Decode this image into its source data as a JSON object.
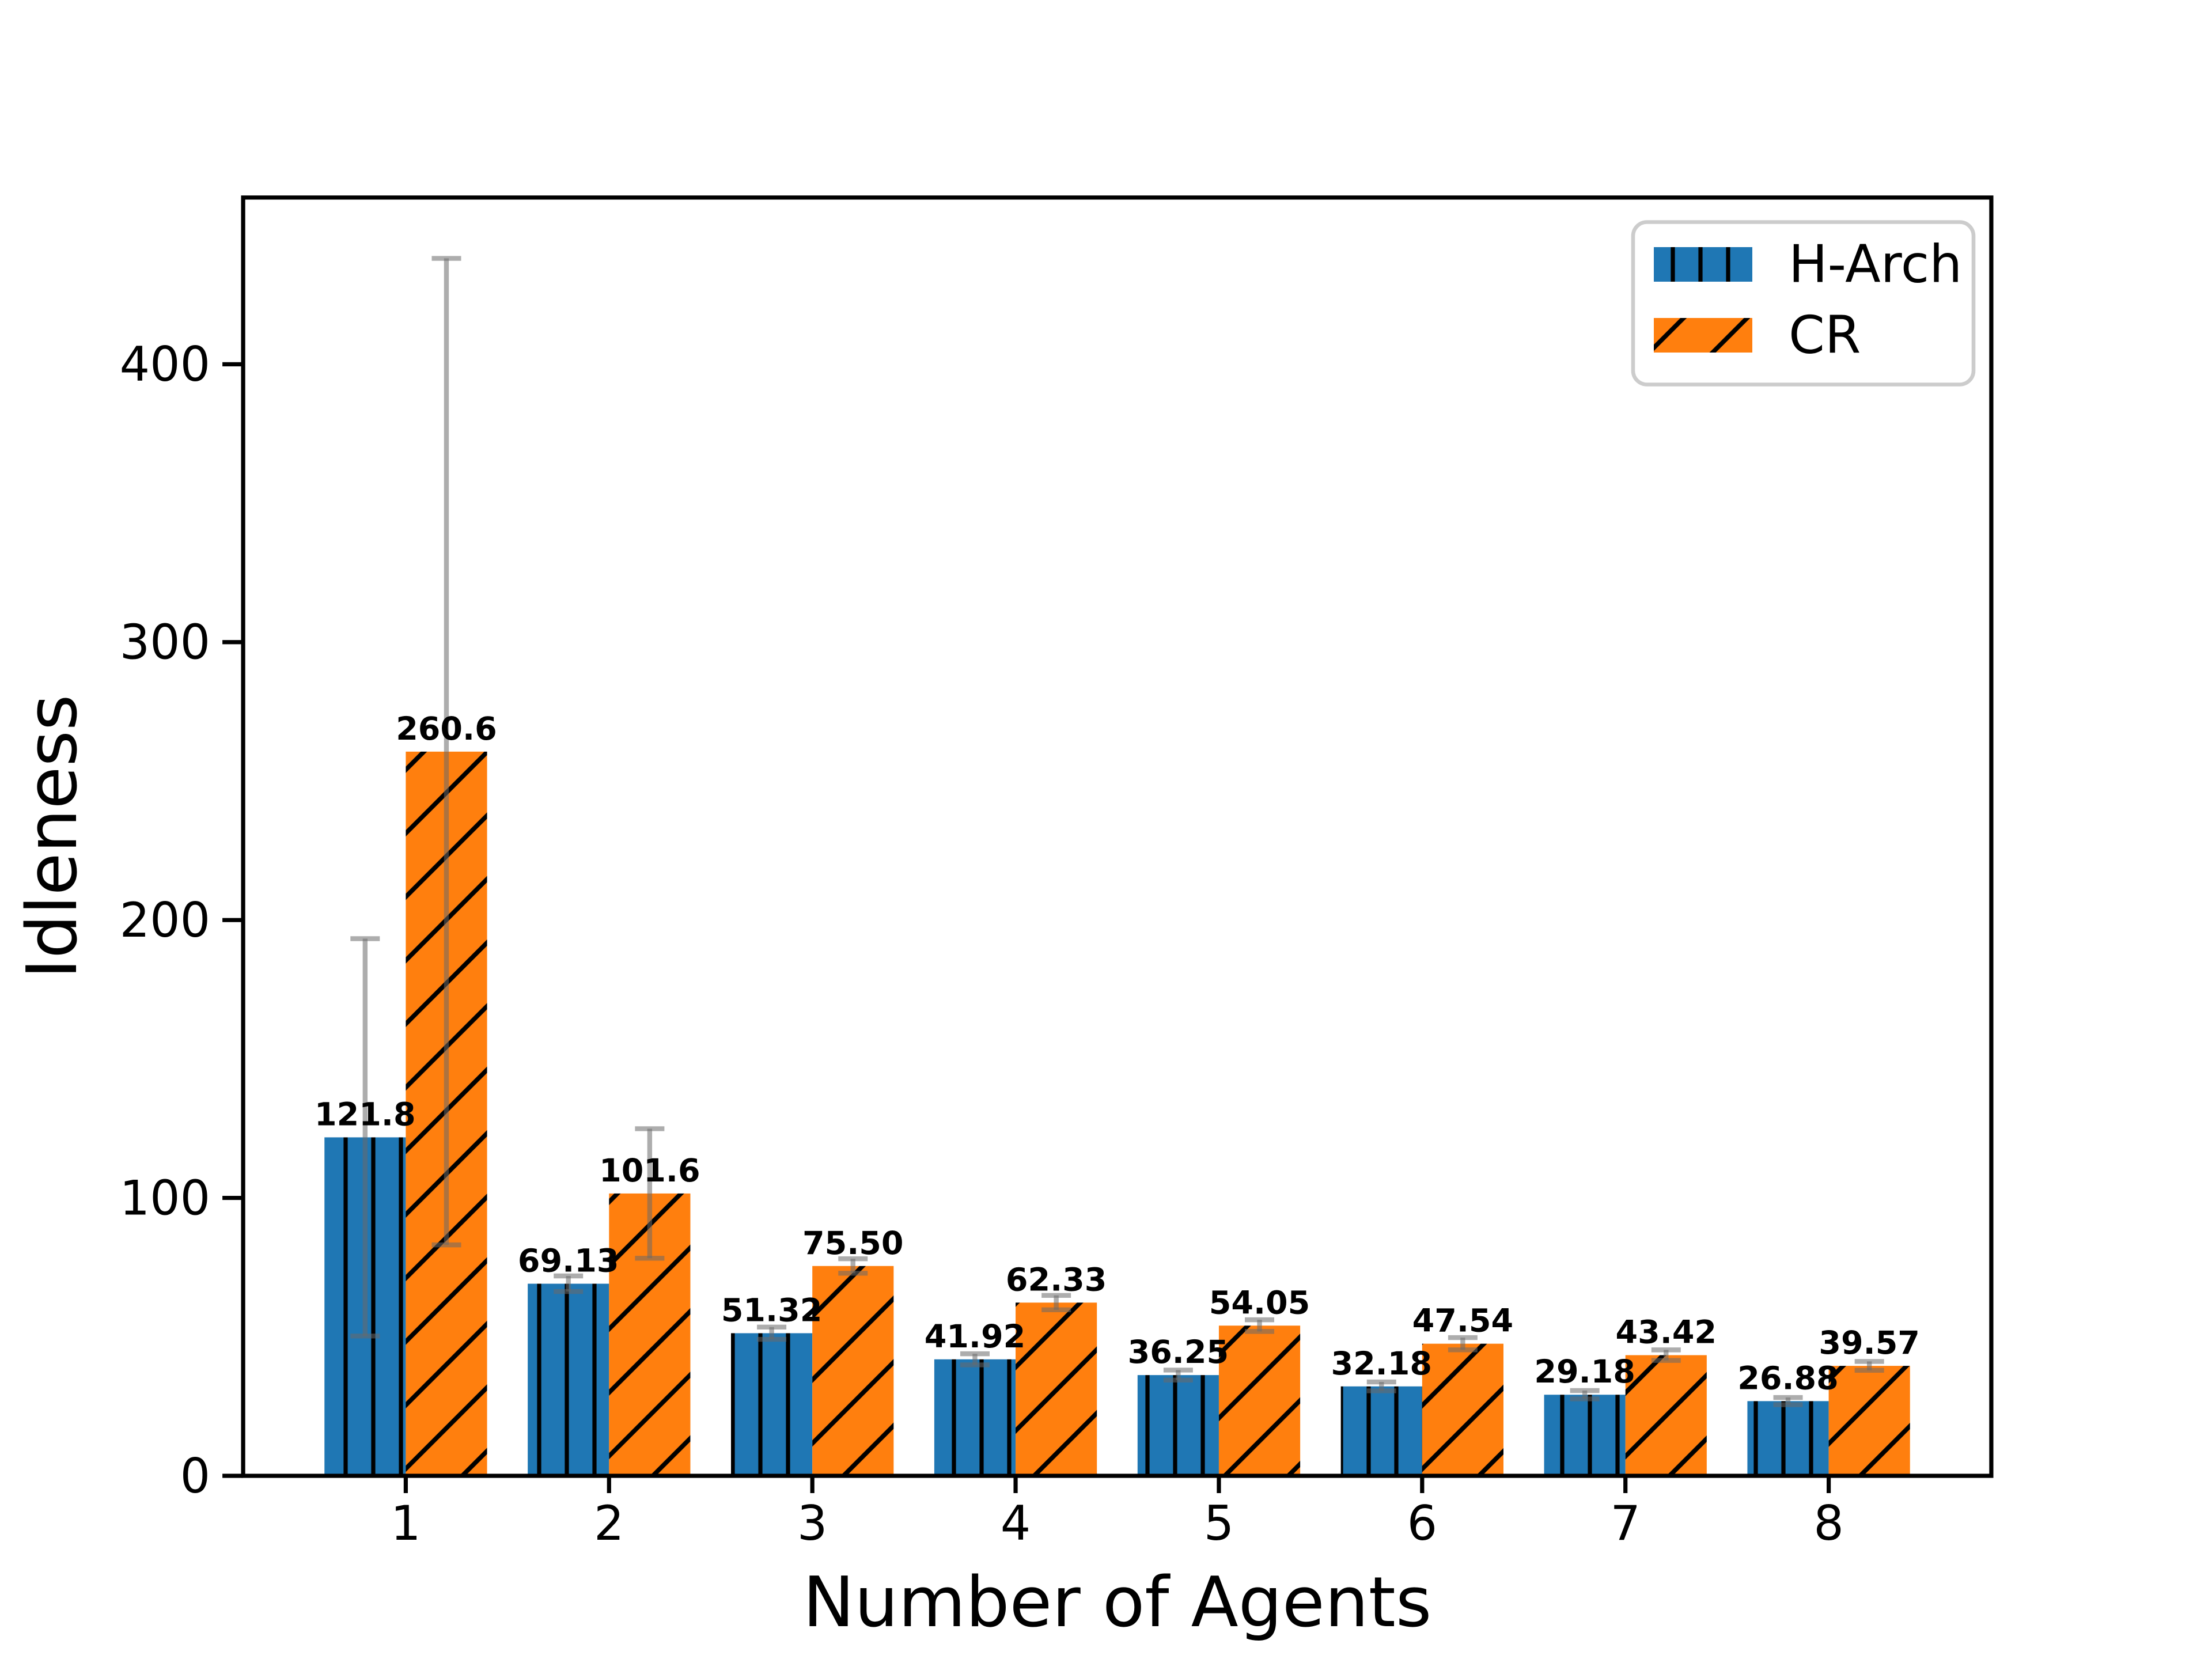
{
  "chart_data": {
    "type": "bar",
    "title": "",
    "xlabel": "Number of Agents",
    "ylabel": "Idleness",
    "categories": [
      "1",
      "2",
      "3",
      "4",
      "5",
      "6",
      "7",
      "8"
    ],
    "x": [
      1,
      2,
      3,
      4,
      5,
      6,
      7,
      8
    ],
    "yticks": [
      "0",
      "100",
      "200",
      "300",
      "400"
    ],
    "ytick_values": [
      0,
      100,
      200,
      300,
      400
    ],
    "ylim": [
      0,
      460
    ],
    "xlim": [
      0.2,
      8.8
    ],
    "bar_width": 0.4,
    "grid": false,
    "legend_position": "upper right",
    "series": [
      {
        "name": "H-Arch",
        "color": "#1f77b4",
        "hatch": "vertical",
        "values": [
          121.8,
          69.13,
          51.32,
          41.92,
          36.25,
          32.18,
          29.18,
          26.88
        ],
        "errors": [
          71.5,
          2.8,
          2.2,
          2.0,
          1.8,
          1.6,
          1.5,
          1.3
        ],
        "labels": [
          "121.8",
          "69.13",
          "51.32",
          "41.92",
          "36.25",
          "32.18",
          "29.18",
          "26.88"
        ]
      },
      {
        "name": "CR",
        "color": "#ff7f0e",
        "hatch": "diagonal",
        "values": [
          260.6,
          101.6,
          75.5,
          62.33,
          54.05,
          47.54,
          43.42,
          39.57
        ],
        "errors": [
          177.5,
          23.3,
          2.6,
          2.6,
          2.1,
          2.2,
          1.9,
          1.6
        ],
        "labels": [
          "260.6",
          "101.6",
          "75.50",
          "62.33",
          "54.05",
          "47.54",
          "43.42",
          "39.57"
        ]
      }
    ],
    "colors": {
      "hatch": "#000000",
      "error_bar": "rgba(105,105,105,0.55)",
      "spine": "#000000",
      "background": "#ffffff",
      "legend_border": "#cccccc",
      "text": "#000000"
    }
  }
}
